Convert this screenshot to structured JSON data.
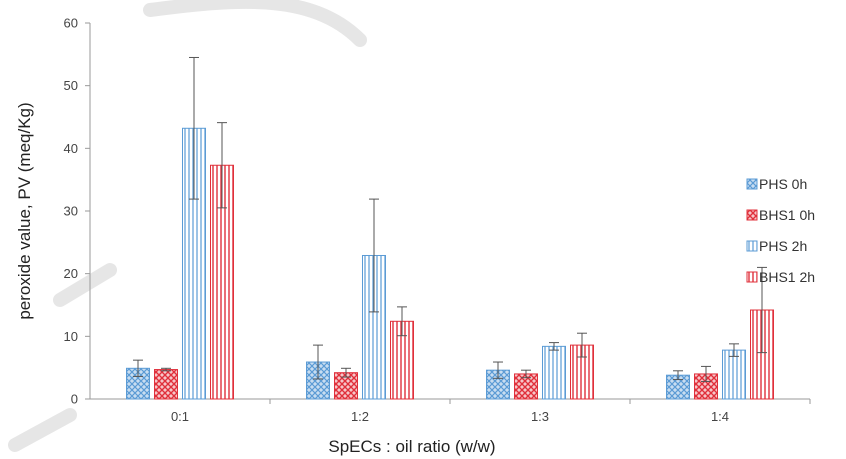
{
  "chart_data": {
    "type": "bar",
    "title": "",
    "xlabel": "SpECs : oil ratio (w/w)",
    "ylabel": "peroxide value, PV (meq/Kg)",
    "ylim": [
      0,
      60
    ],
    "yticks": [
      "0",
      "10",
      "20",
      "30",
      "40",
      "50",
      "60"
    ],
    "categories": [
      "0:1",
      "1:2",
      "1:3",
      "1:4"
    ],
    "grid": false,
    "legend_position": "right",
    "series": [
      {
        "name": "PHS 0h",
        "pattern": "crosshatch",
        "color": "#5b9bd5",
        "values": [
          4.9,
          5.9,
          4.6,
          3.8
        ],
        "errors": [
          1.3,
          2.7,
          1.3,
          0.7
        ]
      },
      {
        "name": "BHS1 0h",
        "pattern": "crosshatch",
        "color": "#e0303b",
        "values": [
          4.7,
          4.2,
          4.0,
          4.0
        ],
        "errors": [
          0.2,
          0.7,
          0.6,
          1.2
        ]
      },
      {
        "name": "PHS 2h",
        "pattern": "vertical-stripes",
        "color": "#5b9bd5",
        "values": [
          43.2,
          22.9,
          8.4,
          7.8
        ],
        "errors": [
          11.3,
          9.0,
          0.6,
          1.0
        ]
      },
      {
        "name": "BHS1 2h",
        "pattern": "vertical-stripes",
        "color": "#e0303b",
        "values": [
          37.3,
          12.4,
          8.6,
          14.2
        ],
        "errors": [
          6.8,
          2.3,
          1.9,
          6.8
        ]
      }
    ]
  }
}
